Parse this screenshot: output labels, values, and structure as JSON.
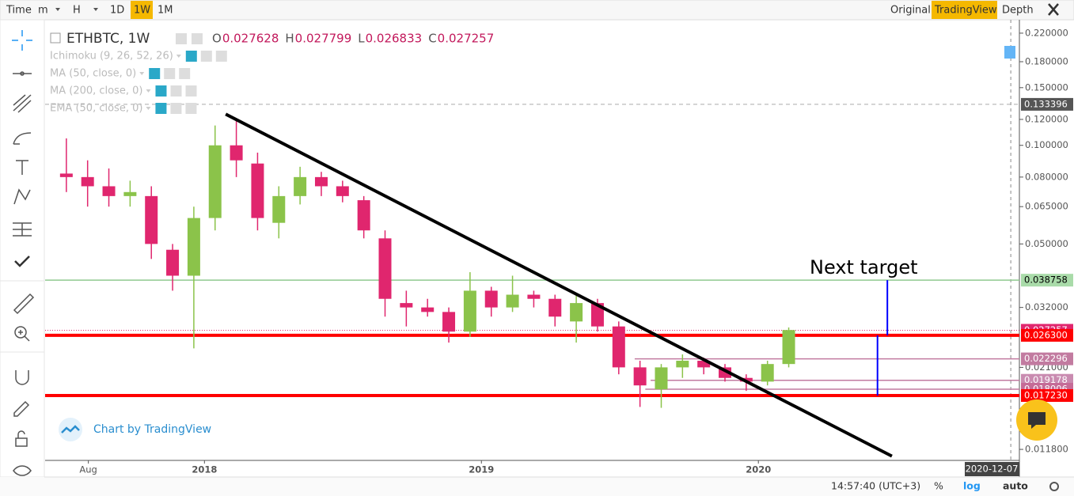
{
  "toolbar": {
    "intervals": [
      {
        "label": "Time"
      },
      {
        "label": "m"
      },
      {
        "label": "H"
      },
      {
        "label": "1D"
      },
      {
        "label": "1W",
        "active": true
      },
      {
        "label": "1M"
      }
    ],
    "views": [
      {
        "label": "Original"
      },
      {
        "label": "TradingView",
        "active": true
      },
      {
        "label": "Depth"
      }
    ]
  },
  "legend": {
    "symbol": "ETHBTC, 1W",
    "ohlc": [
      {
        "key": "O",
        "value": 0.027628
      },
      {
        "key": "H",
        "value": 0.027799
      },
      {
        "key": "L",
        "value": 0.026833
      },
      {
        "key": "C",
        "value": 0.027257
      }
    ],
    "indicators": [
      "Ichimoku (9, 26, 52, 26)",
      "MA (50, close, 0)",
      "MA (200, close, 0)",
      "EMA (50, close, 0)"
    ]
  },
  "watermark": "Chart by TradingView",
  "status_bar": {
    "time": "14:57:40 (UTC+3)",
    "percent": "%",
    "log": "log",
    "auto": "auto"
  },
  "chart_data": {
    "type": "candlestick",
    "log": true,
    "up_color": "#8bc34a",
    "down_color": "#e0266e",
    "x": [
      "2017-07-03",
      "2017-07-31",
      "2017-08-28",
      "2017-09-25",
      "2017-10-23",
      "2017-11-20",
      "2017-12-18",
      "2018-01-15",
      "2018-02-12",
      "2018-03-12",
      "2018-04-09",
      "2018-05-07",
      "2018-06-04",
      "2018-07-02",
      "2018-07-30",
      "2018-08-27",
      "2018-09-24",
      "2018-10-22",
      "2018-11-19",
      "2018-12-17",
      "2019-01-14",
      "2019-02-11",
      "2019-03-11",
      "2019-04-08",
      "2019-05-06",
      "2019-06-03",
      "2019-07-01",
      "2019-07-29",
      "2019-08-26",
      "2019-09-23",
      "2019-10-21",
      "2019-11-18",
      "2019-12-16",
      "2020-01-13",
      "2020-02-10"
    ],
    "open": [
      0.082,
      0.08,
      0.075,
      0.07,
      0.07,
      0.048,
      0.04,
      0.06,
      0.1,
      0.088,
      0.058,
      0.07,
      0.08,
      0.075,
      0.068,
      0.052,
      0.033,
      0.032,
      0.031,
      0.027,
      0.036,
      0.032,
      0.035,
      0.034,
      0.029,
      0.033,
      0.028,
      0.021,
      0.018,
      0.021,
      0.022,
      0.021,
      0.0195,
      0.019,
      0.0215
    ],
    "high": [
      0.105,
      0.09,
      0.085,
      0.078,
      0.075,
      0.05,
      0.065,
      0.115,
      0.121,
      0.095,
      0.075,
      0.086,
      0.083,
      0.078,
      0.07,
      0.055,
      0.036,
      0.034,
      0.032,
      0.041,
      0.037,
      0.04,
      0.036,
      0.035,
      0.035,
      0.034,
      0.029,
      0.022,
      0.0215,
      0.023,
      0.0225,
      0.0215,
      0.02,
      0.022,
      0.0278
    ],
    "low": [
      0.072,
      0.065,
      0.065,
      0.065,
      0.045,
      0.036,
      0.024,
      0.055,
      0.08,
      0.055,
      0.052,
      0.066,
      0.07,
      0.067,
      0.052,
      0.03,
      0.028,
      0.03,
      0.025,
      0.026,
      0.03,
      0.031,
      0.032,
      0.028,
      0.025,
      0.027,
      0.02,
      0.0159,
      0.0158,
      0.0195,
      0.02,
      0.019,
      0.0178,
      0.0185,
      0.021
    ],
    "close": [
      0.08,
      0.075,
      0.07,
      0.072,
      0.05,
      0.04,
      0.06,
      0.1,
      0.09,
      0.06,
      0.07,
      0.08,
      0.075,
      0.07,
      0.055,
      0.034,
      0.032,
      0.031,
      0.027,
      0.036,
      0.032,
      0.035,
      0.034,
      0.03,
      0.033,
      0.028,
      0.021,
      0.0185,
      0.021,
      0.022,
      0.021,
      0.0195,
      0.019,
      0.0215,
      0.0273
    ],
    "xlim": [
      "2017-06-05",
      "2020-12-10"
    ],
    "xticks": [
      {
        "value": "2017-08-01",
        "label": "Aug"
      },
      {
        "value": "2018-01-01",
        "label": "2018"
      },
      {
        "value": "2019-01-01",
        "label": "2019"
      },
      {
        "value": "2020-01-01",
        "label": "2020"
      }
    ],
    "ylim": [
      0.01092,
      0.2417
    ],
    "yticks": [
      {
        "value": 0.22,
        "label": "0.220000"
      },
      {
        "value": 0.18,
        "label": "0.180000"
      },
      {
        "value": 0.15,
        "label": "0.150000"
      },
      {
        "value": 0.12,
        "label": "0.120000"
      },
      {
        "value": 0.1,
        "label": "0.100000"
      },
      {
        "value": 0.08,
        "label": "0.080000"
      },
      {
        "value": 0.065,
        "label": "0.065000"
      },
      {
        "value": 0.05,
        "label": "0.050000"
      },
      {
        "value": 0.032,
        "label": "0.032000"
      },
      {
        "value": 0.021,
        "label": "0.021000"
      },
      {
        "value": 0.0118,
        "label": "0.011800"
      }
    ],
    "crosshair": {
      "value": "2020-12-07",
      "label": "2020-12-07"
    },
    "levels": [
      {
        "value": 0.133396,
        "label": "0.133396",
        "color": "#aaaaaa",
        "box": "#555555",
        "text": "#ffffff",
        "width": 1,
        "dash": true
      },
      {
        "value": 0.038758,
        "label": "0.038758",
        "color": "#8fc98f",
        "box": "#a9dba9",
        "text": "#000000",
        "width": 1.5
      },
      {
        "value": 0.027257,
        "label": "0.027257",
        "color": "#e0266e",
        "box": "#e0266e",
        "text": "#ffffff",
        "width": 1,
        "dot": true
      },
      {
        "value": 0.0263,
        "label": "0.026300",
        "color": "#ff0000",
        "box": "#ff0000",
        "text": "#ffffff",
        "width": 4
      },
      {
        "value": 0.022296,
        "label": "0.022296",
        "color": "#c27ba0",
        "box": "#c27ba0",
        "text": "#ffffff",
        "width": 1.5,
        "from": "2019-07-22"
      },
      {
        "value": 0.019178,
        "label": "0.019178",
        "color": "#c27ba0",
        "box": "#c98bb0",
        "text": "#ffffff",
        "width": 1.5,
        "from": "2019-08-12"
      },
      {
        "value": 0.018006,
        "label": "0.018006",
        "color": "#c27ba0",
        "box": "#c56b97",
        "text": "#ffffff",
        "width": 1.5,
        "from": "2019-08-05"
      },
      {
        "value": 0.01723,
        "label": "0.017230",
        "color": "#ff0000",
        "box": "#ff0000",
        "text": "#ffffff",
        "width": 4
      }
    ],
    "trendline": {
      "x": [
        "2018-01-29",
        "2020-06-25"
      ],
      "values": [
        0.1245,
        0.01125
      ]
    },
    "measures": [
      {
        "x": "2020-06-19",
        "from": 0.0263,
        "to": 0.038758,
        "color": "#0000ff"
      },
      {
        "x": "2020-06-06",
        "from": 0.01723,
        "to": 0.0263,
        "color": "#0000ff"
      }
    ],
    "annotation": "Next target"
  }
}
